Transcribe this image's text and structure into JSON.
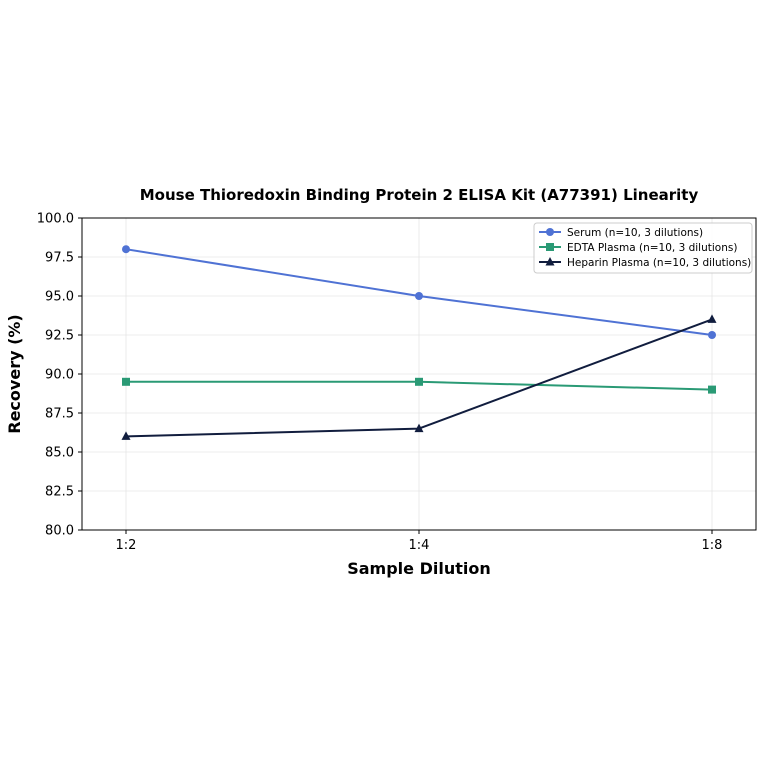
{
  "chart_data": {
    "type": "line",
    "title": "Mouse Thioredoxin Binding Protein 2 ELISA Kit (A77391) Linearity",
    "xlabel": "Sample Dilution",
    "ylabel": "Recovery (%)",
    "categories": [
      "1:2",
      "1:4",
      "1:8"
    ],
    "ylim": [
      80.0,
      100.0
    ],
    "yticks": [
      "80.0",
      "82.5",
      "85.0",
      "87.5",
      "90.0",
      "92.5",
      "95.0",
      "97.5",
      "100.0"
    ],
    "grid": true,
    "legend_position": "top-right",
    "series": [
      {
        "name": "Serum (n=10, 3 dilutions)",
        "values": [
          98.0,
          95.0,
          92.5
        ],
        "color": "#4f72d4",
        "marker": "circle"
      },
      {
        "name": "EDTA Plasma (n=10, 3 dilutions)",
        "values": [
          89.5,
          89.5,
          89.0
        ],
        "color": "#2a9a75",
        "marker": "square"
      },
      {
        "name": "Heparin Plasma (n=10, 3 dilutions)",
        "values": [
          86.0,
          86.5,
          93.5
        ],
        "color": "#111d3e",
        "marker": "triangle"
      }
    ]
  }
}
